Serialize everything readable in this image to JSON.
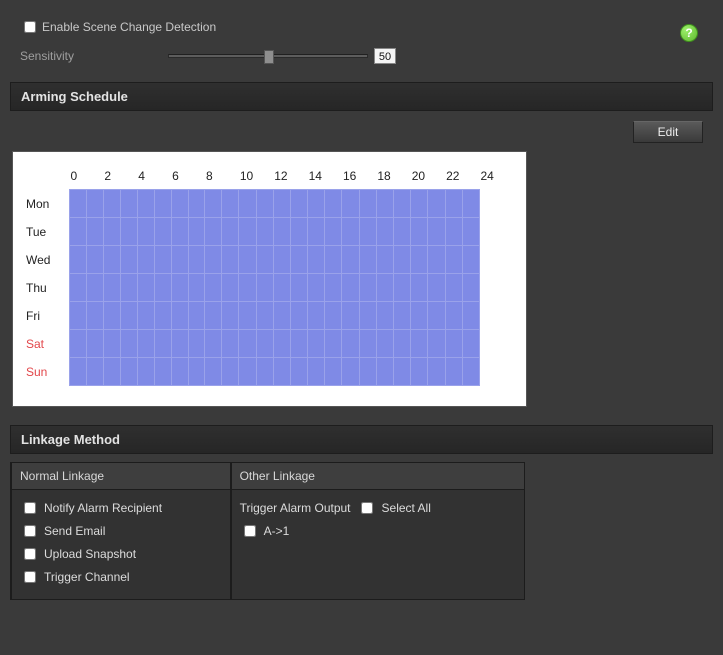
{
  "enable": {
    "label": "Enable Scene Change Detection",
    "checked": false
  },
  "sensitivity": {
    "label": "Sensitivity",
    "value": 50,
    "min": 0,
    "max": 100
  },
  "armingSchedule": {
    "title": "Arming Schedule",
    "editLabel": "Edit",
    "hours": [
      "0",
      "2",
      "4",
      "6",
      "8",
      "10",
      "12",
      "14",
      "16",
      "18",
      "20",
      "22",
      "24"
    ],
    "days": [
      {
        "label": "Mon",
        "weekend": false
      },
      {
        "label": "Tue",
        "weekend": false
      },
      {
        "label": "Wed",
        "weekend": false
      },
      {
        "label": "Thu",
        "weekend": false
      },
      {
        "label": "Fri",
        "weekend": false
      },
      {
        "label": "Sat",
        "weekend": true
      },
      {
        "label": "Sun",
        "weekend": true
      }
    ],
    "cellsPerDay": 24,
    "style": {
      "cell_fill": "#7f8ae6",
      "cell_border": "#9aa2ea",
      "weekend_color": "#e2464a",
      "panel_bg": "#ffffff"
    }
  },
  "linkageMethod": {
    "title": "Linkage Method",
    "normal": {
      "header": "Normal Linkage",
      "items": [
        {
          "label": "Notify Alarm Recipient",
          "checked": false
        },
        {
          "label": "Send Email",
          "checked": false
        },
        {
          "label": "Upload Snapshot",
          "checked": false
        },
        {
          "label": "Trigger Channel",
          "checked": false
        }
      ]
    },
    "other": {
      "header": "Other Linkage",
      "triggerLabel": "Trigger Alarm Output",
      "selectAll": {
        "label": "Select All",
        "checked": false
      },
      "items": [
        {
          "label": "A->1",
          "checked": false
        }
      ]
    }
  },
  "colors": {
    "page_bg": "#3a3a3a",
    "header_bg_top": "#2f2f2f",
    "header_bg_bot": "#262626",
    "text": "#c8c8c8",
    "muted": "#9f9f9f"
  }
}
